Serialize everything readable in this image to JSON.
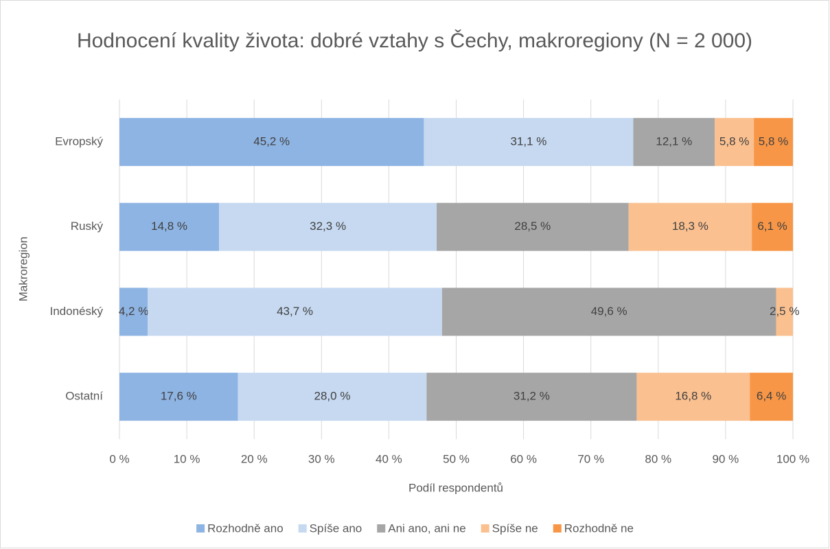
{
  "chart_data": {
    "type": "stacked-bar-horizontal",
    "title": "Hodnocení kvality života: dobré vztahy s Čechy, makroregiony (N = 2 000)",
    "x_label": "Podíl respondentů",
    "y_label": "Makroregion",
    "categories": [
      "Evropský",
      "Ruský",
      "Indonéský",
      "Ostatní"
    ],
    "series": [
      {
        "name": "Rozhodně ano",
        "color": "#8eb4e3",
        "values": [
          45.2,
          14.8,
          4.2,
          17.6
        ],
        "value_labels": [
          "45,2 %",
          "14,8 %",
          "4,2 %",
          "17,6 %"
        ]
      },
      {
        "name": "Spíše ano",
        "color": "#c6d9f1",
        "values": [
          31.1,
          32.3,
          43.7,
          28.0
        ],
        "value_labels": [
          "31,1 %",
          "32,3 %",
          "43,7 %",
          "28,0 %"
        ]
      },
      {
        "name": "Ani ano, ani ne",
        "color": "#a6a6a6",
        "values": [
          12.1,
          28.5,
          49.6,
          31.2
        ],
        "value_labels": [
          "12,1 %",
          "28,5 %",
          "49,6 %",
          "31,2 %"
        ]
      },
      {
        "name": "Spíše ne",
        "color": "#fac090",
        "values": [
          5.8,
          18.3,
          2.5,
          16.8
        ],
        "value_labels": [
          "5,8 %",
          "18,3 %",
          "2,5 %",
          "16,8 %"
        ]
      },
      {
        "name": "Rozhodně ne",
        "color": "#f79646",
        "values": [
          5.8,
          6.1,
          null,
          6.4
        ],
        "value_labels": [
          "5,8 %",
          "6,1 %",
          null,
          "6,4 %"
        ]
      }
    ],
    "xlim": [
      0,
      100
    ],
    "xticks": [
      {
        "value": 0,
        "label": "0 %"
      },
      {
        "value": 10,
        "label": "10 %"
      },
      {
        "value": 20,
        "label": "20 %"
      },
      {
        "value": 30,
        "label": "30 %"
      },
      {
        "value": 40,
        "label": "40 %"
      },
      {
        "value": 50,
        "label": "50 %"
      },
      {
        "value": 60,
        "label": "60 %"
      },
      {
        "value": 70,
        "label": "70 %"
      },
      {
        "value": 80,
        "label": "80 %"
      },
      {
        "value": 90,
        "label": "90 %"
      },
      {
        "value": 100,
        "label": "100 %"
      }
    ],
    "grid": true,
    "legend": "bottom"
  }
}
